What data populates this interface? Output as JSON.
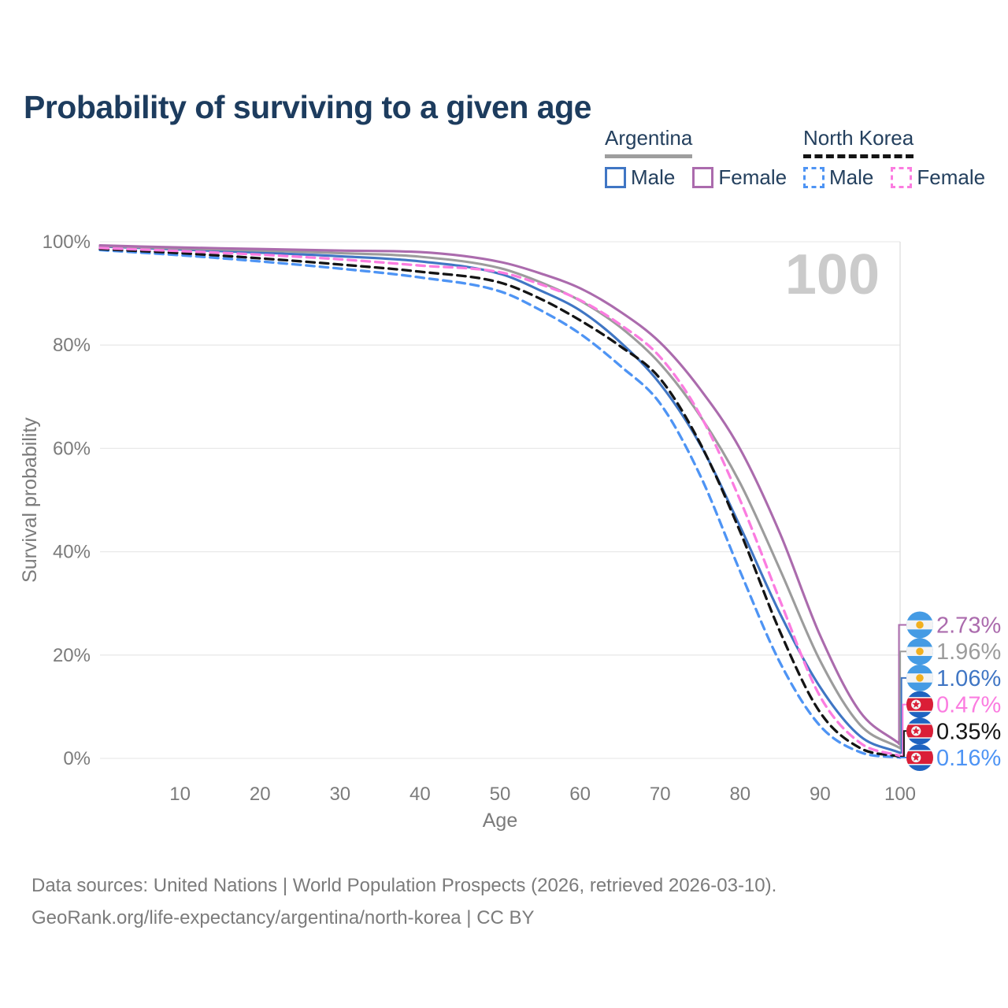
{
  "title": "Probability of surviving to a given age",
  "legend": {
    "groups": [
      {
        "country": "Argentina",
        "style": "solid",
        "items": [
          {
            "label": "Male",
            "color": "#4076c4",
            "dash": "solid"
          },
          {
            "label": "Female",
            "color": "#ab6bad",
            "dash": "solid"
          }
        ]
      },
      {
        "country": "North Korea",
        "style": "dashed",
        "items": [
          {
            "label": "Male",
            "color": "#4e94f4",
            "dash": "dashed"
          },
          {
            "label": "Female",
            "color": "#fb7ce0",
            "dash": "dashed"
          }
        ]
      }
    ]
  },
  "watermark": "100",
  "footer": {
    "line1": "Data sources: United Nations | World Population Prospects (2026, retrieved 2026-03-10).",
    "line2": "GeoRank.org/life-expectancy/argentina/north-korea | CC BY"
  },
  "chart_data": {
    "type": "line",
    "title": "Probability of surviving to a given age",
    "xlabel": "Age",
    "ylabel": "Survival probability",
    "xlim": [
      0,
      100
    ],
    "ylim": [
      0,
      100
    ],
    "x_ticks": [
      10,
      20,
      30,
      40,
      50,
      60,
      70,
      80,
      90,
      100
    ],
    "y_ticks": [
      0,
      20,
      40,
      60,
      80,
      100
    ],
    "y_tick_suffix": "%",
    "grid": "horizontal",
    "legend_position": "top-right",
    "ages": [
      0,
      10,
      20,
      30,
      40,
      50,
      55,
      60,
      65,
      70,
      75,
      80,
      85,
      90,
      95,
      100
    ],
    "series": [
      {
        "name": "Argentina Female",
        "country": "Argentina",
        "sex": "Female",
        "color": "#ab6bad",
        "dash": "solid",
        "flag": "argentina",
        "end_label": "2.73%",
        "values": [
          99.3,
          98.9,
          98.6,
          98.3,
          98.0,
          96.1,
          93.9,
          91.0,
          86.5,
          80.5,
          71.5,
          59.9,
          43.5,
          23.8,
          9.0,
          2.73
        ]
      },
      {
        "name": "Argentina Both sexes",
        "country": "Argentina",
        "sex": "Both",
        "color": "#9c9c9c",
        "dash": "solid",
        "flag": "argentina",
        "end_label": "1.96%",
        "values": [
          99.2,
          98.7,
          98.3,
          97.8,
          97.1,
          94.9,
          92.2,
          88.6,
          83.5,
          76.4,
          66.3,
          53.3,
          36.5,
          18.9,
          6.5,
          1.96
        ]
      },
      {
        "name": "Argentina Male",
        "country": "Argentina",
        "sex": "Male",
        "color": "#4076c4",
        "dash": "solid",
        "flag": "argentina",
        "end_label": "1.06%",
        "values": [
          99.1,
          98.5,
          97.9,
          97.2,
          96.2,
          93.8,
          90.6,
          86.7,
          80.6,
          72.5,
          60.8,
          44.9,
          28.0,
          13.8,
          4.3,
          1.06
        ]
      },
      {
        "name": "North Korea Female",
        "country": "North Korea",
        "sex": "Female",
        "color": "#fb7ce0",
        "dash": "dashed",
        "flag": "north-korea",
        "end_label": "0.47%",
        "values": [
          98.8,
          98.2,
          97.5,
          96.6,
          95.4,
          94.1,
          91.8,
          88.7,
          84.0,
          77.7,
          66.5,
          50.0,
          30.5,
          12.0,
          3.0,
          0.47
        ]
      },
      {
        "name": "North Korea Both sexes",
        "country": "North Korea",
        "sex": "Both",
        "color": "#141414",
        "dash": "dashed",
        "flag": "north-korea",
        "end_label": "0.35%",
        "values": [
          98.6,
          97.8,
          96.8,
          95.6,
          94.2,
          92.1,
          89.0,
          84.8,
          79.8,
          73.5,
          61.0,
          43.9,
          24.5,
          8.9,
          2.0,
          0.35
        ]
      },
      {
        "name": "North Korea Male",
        "country": "North Korea",
        "sex": "Male",
        "color": "#4e94f4",
        "dash": "dashed",
        "flag": "north-korea",
        "end_label": "0.16%",
        "values": [
          98.4,
          97.4,
          96.2,
          94.8,
          93.1,
          90.4,
          86.8,
          82.2,
          76.0,
          68.7,
          54.8,
          36.2,
          18.5,
          6.3,
          1.2,
          0.16
        ]
      }
    ],
    "flag_colors": {
      "argentina_blue": "#459be4",
      "argentina_white": "#f3f3f3",
      "argentina_sun": "#f2b01e",
      "nk_blue": "#1f63c0",
      "nk_red": "#da1e37",
      "nk_white": "#f3f3f3"
    },
    "axis_text_color": "#7b7b7b",
    "grid_color": "#e9e9e9",
    "watermark_color": "#cbcbcb"
  }
}
